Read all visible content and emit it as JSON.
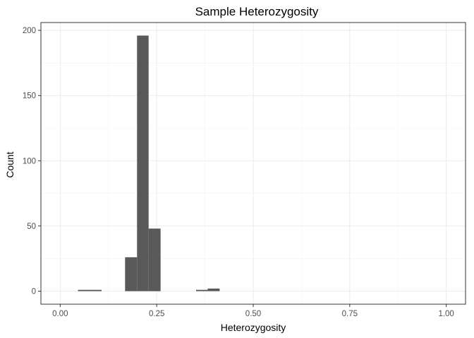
{
  "chart_data": {
    "type": "bar",
    "title": "Sample Heterozygosity",
    "xlabel": "Heterozygosity",
    "ylabel": "Count",
    "xlim": [
      -0.05,
      1.05
    ],
    "ylim": [
      -10,
      206
    ],
    "x_ticks": [
      0.0,
      0.25,
      0.5,
      0.75,
      1.0
    ],
    "x_tick_labels": [
      "0.00",
      "0.25",
      "0.50",
      "0.75",
      "1.00"
    ],
    "y_ticks": [
      0,
      50,
      100,
      150,
      200
    ],
    "y_tick_labels": [
      "0",
      "50",
      "100",
      "150",
      "200"
    ],
    "bin_width": 0.0306,
    "bins": [
      {
        "x0": 0.046,
        "x1": 0.077,
        "count": 1
      },
      {
        "x0": 0.077,
        "x1": 0.107,
        "count": 1
      },
      {
        "x0": 0.168,
        "x1": 0.199,
        "count": 26
      },
      {
        "x0": 0.199,
        "x1": 0.229,
        "count": 196
      },
      {
        "x0": 0.229,
        "x1": 0.26,
        "count": 48
      },
      {
        "x0": 0.352,
        "x1": 0.382,
        "count": 1
      },
      {
        "x0": 0.382,
        "x1": 0.413,
        "count": 2
      }
    ],
    "grid": true,
    "bar_color": "#595959"
  }
}
